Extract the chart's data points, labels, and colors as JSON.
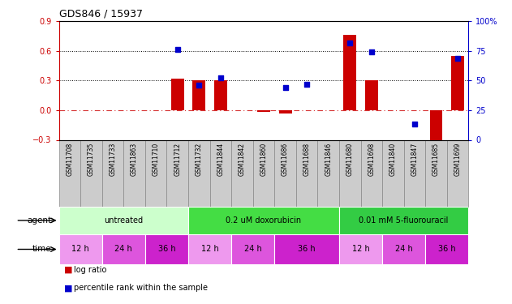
{
  "title": "GDS846 / 15937",
  "samples": [
    "GSM11708",
    "GSM11735",
    "GSM11733",
    "GSM11863",
    "GSM11710",
    "GSM11712",
    "GSM11732",
    "GSM11844",
    "GSM11842",
    "GSM11860",
    "GSM11686",
    "GSM11688",
    "GSM11846",
    "GSM11680",
    "GSM11698",
    "GSM11840",
    "GSM11847",
    "GSM11685",
    "GSM11699"
  ],
  "log_ratio": [
    0,
    0,
    0,
    0,
    0,
    0.32,
    0.3,
    0.3,
    0,
    -0.02,
    -0.03,
    0,
    0,
    0.76,
    0.3,
    0,
    0,
    -0.37,
    0.55
  ],
  "pct_rank": [
    null,
    null,
    null,
    null,
    null,
    76,
    46,
    52,
    null,
    null,
    44,
    47,
    null,
    82,
    74,
    null,
    13,
    null,
    69
  ],
  "ylim_left": [
    -0.3,
    0.9
  ],
  "ylim_right": [
    0,
    100
  ],
  "yticks_left": [
    -0.3,
    0,
    0.3,
    0.6,
    0.9
  ],
  "yticks_right": [
    0,
    25,
    50,
    75,
    100
  ],
  "hlines": [
    0.3,
    0.6
  ],
  "agent_groups": [
    {
      "label": "untreated",
      "start": 0,
      "end": 6,
      "color": "#ccffcc"
    },
    {
      "label": "0.2 uM doxorubicin",
      "start": 6,
      "end": 13,
      "color": "#44dd44"
    },
    {
      "label": "0.01 mM 5-fluorouracil",
      "start": 13,
      "end": 19,
      "color": "#33cc44"
    }
  ],
  "time_groups": [
    {
      "label": "12 h",
      "start": 0,
      "end": 2,
      "color": "#ee99ee"
    },
    {
      "label": "24 h",
      "start": 2,
      "end": 4,
      "color": "#dd55dd"
    },
    {
      "label": "36 h",
      "start": 4,
      "end": 6,
      "color": "#cc22cc"
    },
    {
      "label": "12 h",
      "start": 6,
      "end": 8,
      "color": "#ee99ee"
    },
    {
      "label": "24 h",
      "start": 8,
      "end": 10,
      "color": "#dd55dd"
    },
    {
      "label": "36 h",
      "start": 10,
      "end": 13,
      "color": "#cc22cc"
    },
    {
      "label": "12 h",
      "start": 13,
      "end": 15,
      "color": "#ee99ee"
    },
    {
      "label": "24 h",
      "start": 15,
      "end": 17,
      "color": "#dd55dd"
    },
    {
      "label": "36 h",
      "start": 17,
      "end": 19,
      "color": "#cc22cc"
    }
  ],
  "bar_color": "#cc0000",
  "dot_color": "#0000cc",
  "zero_line_color": "#cc0000",
  "bg_color": "#ffffff",
  "label_color_left": "#cc0000",
  "label_color_right": "#0000cc",
  "gsm_bg": "#cccccc",
  "gsm_border": "#888888"
}
